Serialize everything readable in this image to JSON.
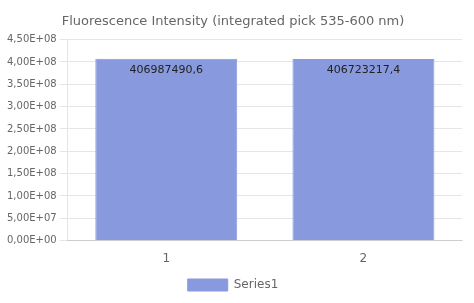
{
  "chart_data": {
    "type": "bar",
    "title": "Fluorescence Intensity (integrated pick 535-600 nm)",
    "categories": [
      "1",
      "2"
    ],
    "series": [
      {
        "name": "Series1",
        "color": "#8899dd",
        "values": [
          406987490.6,
          406723217.4
        ],
        "value_labels": [
          "406987490,6",
          "406723217,4"
        ]
      }
    ],
    "ylim": [
      0,
      450000000
    ],
    "yticks": [
      {
        "value": 0,
        "label": "0,00E+00"
      },
      {
        "value": 50000000,
        "label": "5,00E+07"
      },
      {
        "value": 100000000,
        "label": "1,00E+08"
      },
      {
        "value": 150000000,
        "label": "1,50E+08"
      },
      {
        "value": 200000000,
        "label": "2,00E+08"
      },
      {
        "value": 250000000,
        "label": "2,50E+08"
      },
      {
        "value": 300000000,
        "label": "3,00E+08"
      },
      {
        "value": 350000000,
        "label": "3,50E+08"
      },
      {
        "value": 400000000,
        "label": "4,00E+08"
      },
      {
        "value": 450000000,
        "label": "4,50E+08"
      }
    ],
    "grid": true,
    "legend": "bottom",
    "data_labels": true
  }
}
